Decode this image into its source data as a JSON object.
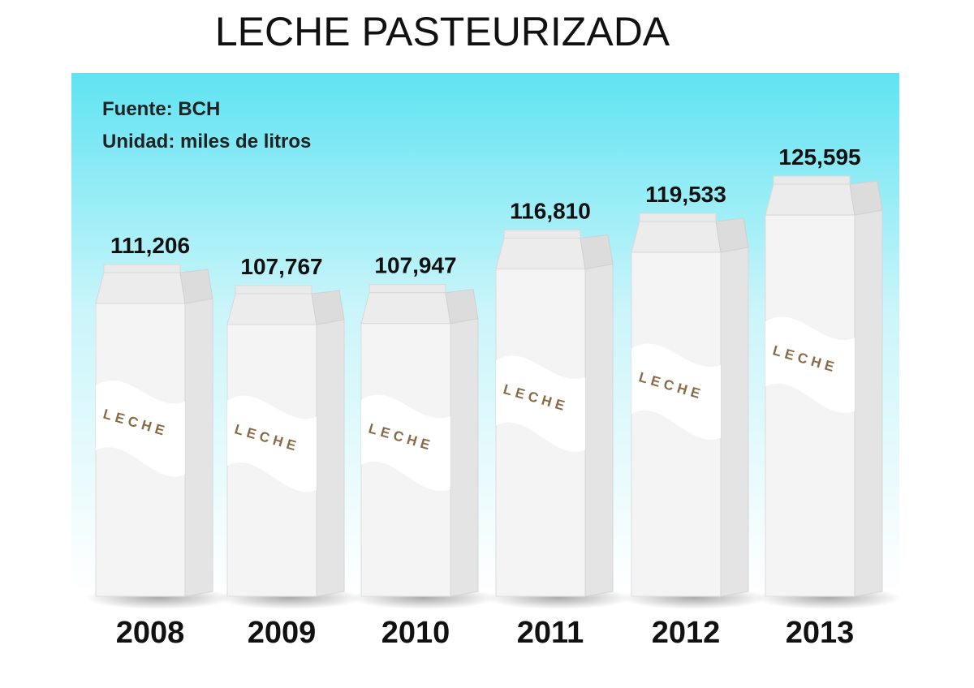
{
  "chart_data": {
    "type": "carton-bar",
    "title": "LECHE PASTEURIZADA",
    "source": "Fuente: BCH",
    "unit": "Unidad: miles de litros",
    "carton_label": "LECHE",
    "categories": [
      "2008",
      "2009",
      "2010",
      "2011",
      "2012",
      "2013"
    ],
    "values": [
      111206,
      107767,
      107947,
      116810,
      119533,
      125595
    ],
    "value_labels": [
      "111,206",
      "107,767",
      "107,947",
      "116,810",
      "119,533",
      "125,595"
    ],
    "color": "#f4f4f4"
  }
}
